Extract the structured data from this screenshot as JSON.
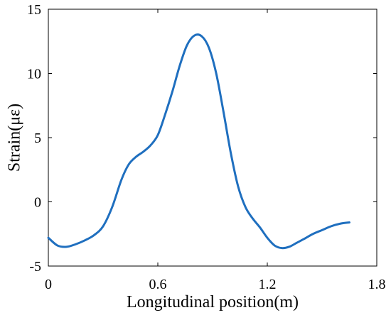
{
  "chart_data": {
    "type": "line",
    "xlabel": "Longitudinal position(m)",
    "ylabel": "Strain(με)",
    "xlim": [
      0,
      1.8
    ],
    "ylim": [
      -5,
      15
    ],
    "x_ticks": [
      {
        "value": 0,
        "label": "0"
      },
      {
        "value": 0.6,
        "label": "0.6"
      },
      {
        "value": 1.2,
        "label": "1.2"
      },
      {
        "value": 1.8,
        "label": "1.8"
      }
    ],
    "y_ticks": [
      {
        "value": -5,
        "label": "-5"
      },
      {
        "value": 0,
        "label": "0"
      },
      {
        "value": 5,
        "label": "5"
      },
      {
        "value": 10,
        "label": "10"
      },
      {
        "value": 15,
        "label": "15"
      }
    ],
    "grid": false,
    "series": [
      {
        "color": "#1f6fbf",
        "points": [
          [
            0.0,
            -2.8
          ],
          [
            0.05,
            -3.4
          ],
          [
            0.1,
            -3.5
          ],
          [
            0.15,
            -3.3
          ],
          [
            0.2,
            -3.0
          ],
          [
            0.25,
            -2.6
          ],
          [
            0.3,
            -1.9
          ],
          [
            0.35,
            -0.4
          ],
          [
            0.4,
            1.7
          ],
          [
            0.44,
            2.9
          ],
          [
            0.48,
            3.5
          ],
          [
            0.52,
            3.9
          ],
          [
            0.56,
            4.4
          ],
          [
            0.6,
            5.2
          ],
          [
            0.64,
            6.8
          ],
          [
            0.68,
            8.6
          ],
          [
            0.72,
            10.6
          ],
          [
            0.76,
            12.2
          ],
          [
            0.8,
            12.95
          ],
          [
            0.84,
            12.9
          ],
          [
            0.88,
            12.0
          ],
          [
            0.92,
            10.0
          ],
          [
            0.96,
            7.0
          ],
          [
            1.0,
            3.8
          ],
          [
            1.04,
            1.2
          ],
          [
            1.08,
            -0.4
          ],
          [
            1.12,
            -1.3
          ],
          [
            1.16,
            -2.0
          ],
          [
            1.2,
            -2.8
          ],
          [
            1.24,
            -3.4
          ],
          [
            1.28,
            -3.6
          ],
          [
            1.32,
            -3.5
          ],
          [
            1.36,
            -3.2
          ],
          [
            1.4,
            -2.9
          ],
          [
            1.45,
            -2.5
          ],
          [
            1.5,
            -2.2
          ],
          [
            1.55,
            -1.9
          ],
          [
            1.6,
            -1.7
          ],
          [
            1.65,
            -1.6
          ]
        ]
      }
    ]
  }
}
